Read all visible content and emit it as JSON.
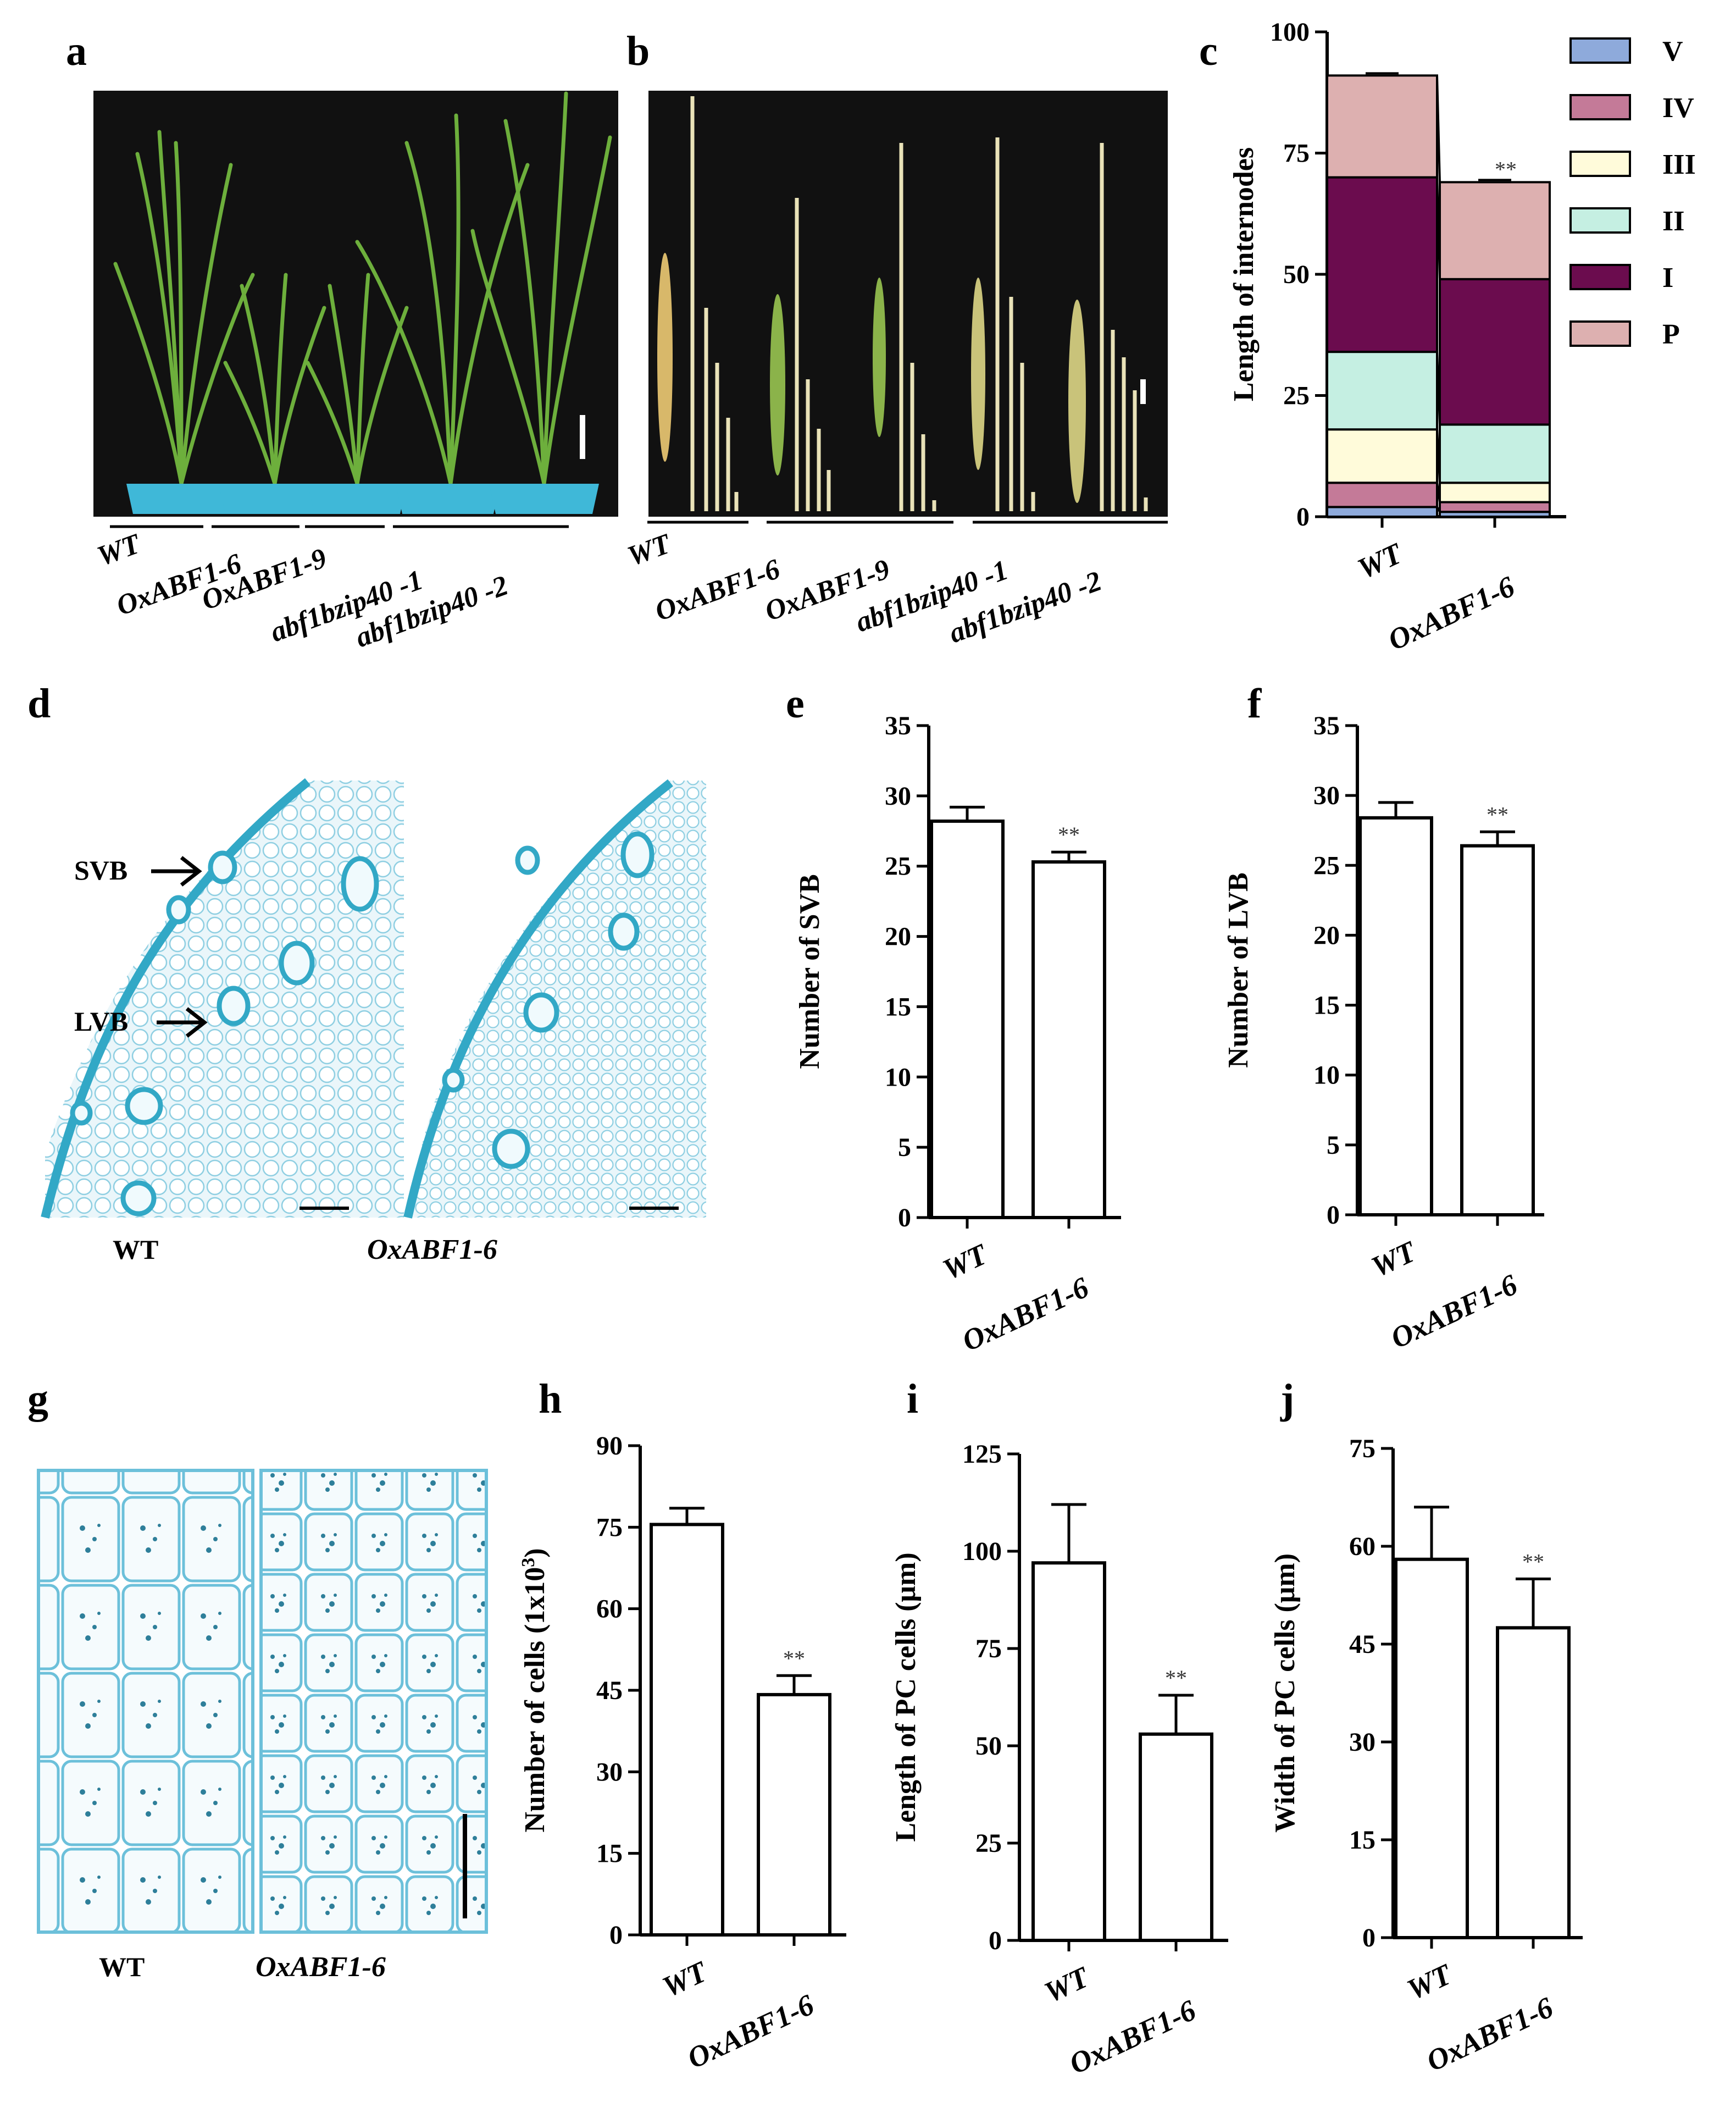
{
  "panel_labels": [
    "a",
    "b",
    "c",
    "d",
    "e",
    "f",
    "g",
    "h",
    "i",
    "j"
  ],
  "photo_a": {
    "genotypes": [
      "WT",
      "OxABF1-6",
      "OxABF1-9",
      "abf1bzip40 -1",
      "abf1bzip40 -2"
    ]
  },
  "photo_b": {
    "genotypes": [
      "WT",
      "OxABF1-6",
      "OxABF1-9",
      "abf1bzip40 -1",
      "abf1bzip40 -2"
    ]
  },
  "photo_d": {
    "labels": [
      "WT",
      "OxABF1-6"
    ],
    "arrows": [
      "SVB",
      "LVB"
    ]
  },
  "photo_g": {
    "labels": [
      "WT",
      "OxABF1-6"
    ]
  },
  "colors": {
    "V": "#8EAADB",
    "IV": "#C47A98",
    "III": "#FFFBDA",
    "II": "#C5EFE2",
    "I": "#6B0C4E",
    "P": "#DDB0B0",
    "photo_bg": "#111111",
    "pot": "#3FB8D8",
    "stain": "#39A8C8"
  },
  "chart_data": [
    {
      "panel": "c",
      "type": "bar",
      "stacked": true,
      "categories": [
        "WT",
        "OxABF1-6"
      ],
      "ylabel": "Length of internodes",
      "ylim": [
        0,
        100
      ],
      "yticks": [
        0,
        25,
        50,
        75,
        100
      ],
      "legend_position": "right",
      "legend_order": [
        "V",
        "IV",
        "III",
        "II",
        "I",
        "P"
      ],
      "series": [
        {
          "name": "V",
          "values": [
            2,
            1
          ]
        },
        {
          "name": "IV",
          "values": [
            5,
            2
          ]
        },
        {
          "name": "III",
          "values": [
            11,
            4
          ]
        },
        {
          "name": "II",
          "values": [
            16,
            12
          ]
        },
        {
          "name": "I",
          "values": [
            36,
            30
          ]
        },
        {
          "name": "P",
          "values": [
            21,
            20
          ]
        }
      ],
      "significance": [
        "**",
        "**",
        "**",
        "**",
        "**",
        "**"
      ]
    },
    {
      "panel": "e",
      "type": "bar",
      "categories": [
        "WT",
        "OxABF1-6"
      ],
      "values": [
        28.2,
        25.3
      ],
      "errors": [
        1.0,
        0.7
      ],
      "ylabel": "Number of SVB",
      "ylim": [
        0,
        35
      ],
      "yticks": [
        0,
        5,
        10,
        15,
        20,
        25,
        30,
        35
      ],
      "significance": [
        "",
        "**"
      ]
    },
    {
      "panel": "f",
      "type": "bar",
      "categories": [
        "WT",
        "OxABF1-6"
      ],
      "values": [
        28.4,
        26.4
      ],
      "errors": [
        1.1,
        1.0
      ],
      "ylabel": "Number of LVB",
      "ylim": [
        0,
        35
      ],
      "yticks": [
        0,
        5,
        10,
        15,
        20,
        25,
        30,
        35
      ],
      "significance": [
        "",
        "**"
      ]
    },
    {
      "panel": "h",
      "type": "bar",
      "categories": [
        "WT",
        "OxABF1-6"
      ],
      "values": [
        75.5,
        44.2
      ],
      "errors": [
        3.0,
        3.5
      ],
      "ylabel_main": "Number of  cells (1x10",
      "ylabel_sup": "3",
      "ylabel_end": ")",
      "ylim": [
        0,
        90
      ],
      "yticks": [
        0,
        15,
        30,
        45,
        60,
        75,
        90
      ],
      "significance": [
        "",
        "**"
      ]
    },
    {
      "panel": "i",
      "type": "bar",
      "categories": [
        "WT",
        "OxABF1-6"
      ],
      "values": [
        97,
        53
      ],
      "errors": [
        15,
        10
      ],
      "ylabel": "Length of PC cells (μm)",
      "ylim": [
        0,
        125
      ],
      "yticks": [
        0,
        25,
        50,
        75,
        100,
        125
      ],
      "significance": [
        "",
        "**"
      ]
    },
    {
      "panel": "j",
      "type": "bar",
      "categories": [
        "WT",
        "OxABF1-6"
      ],
      "values": [
        58,
        47.5
      ],
      "errors": [
        8,
        7.5
      ],
      "ylabel": "Width of PC cells (μm)",
      "ylim": [
        0,
        75
      ],
      "yticks": [
        0,
        15,
        30,
        45,
        60,
        75
      ],
      "significance": [
        "",
        "**"
      ]
    }
  ]
}
